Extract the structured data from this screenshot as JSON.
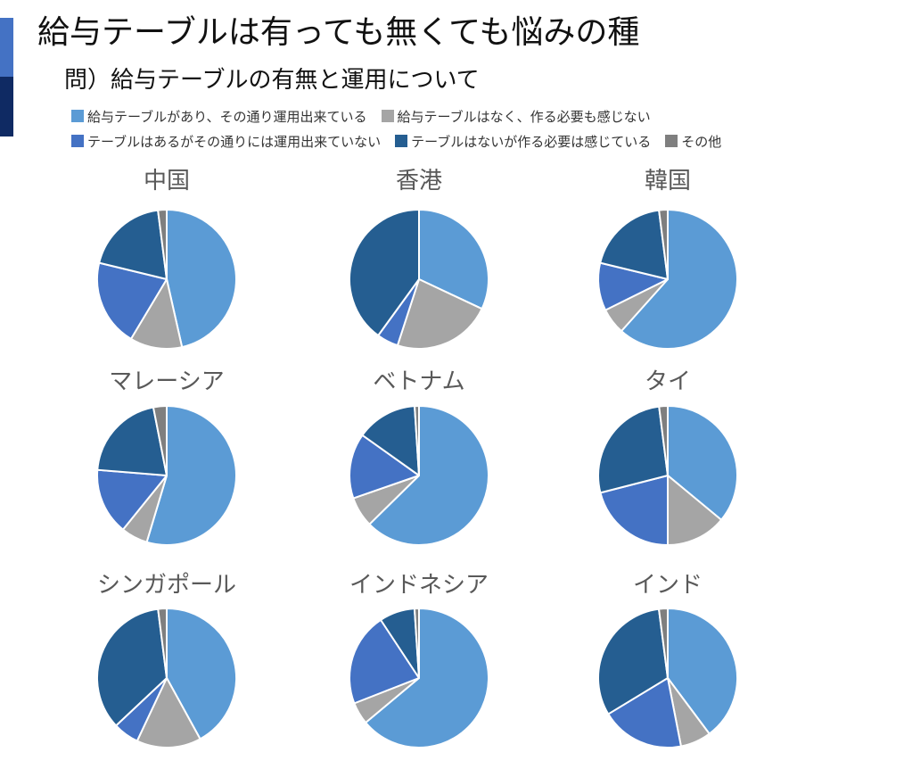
{
  "page": {
    "title": "給与テーブルは有っても無くても悩みの種",
    "subtitle": "問）給与テーブルの有無と運用について"
  },
  "chart_data": {
    "type": "pie",
    "legend_position": "top",
    "series": [
      {
        "name": "給与テーブルがあり、その通り運用出来ている",
        "color": "#5b9bd5"
      },
      {
        "name": "給与テーブルはなく、作る必要も感じない",
        "color": "#a5a5a5"
      },
      {
        "name": "テーブルはあるがその通りには運用出来ていない",
        "color": "#4472c4"
      },
      {
        "name": "テーブルはないが作る必要は感じている",
        "color": "#255e91"
      },
      {
        "name": "その他",
        "color": "#7f7f7f"
      }
    ],
    "legend_rows": [
      [
        0,
        1
      ],
      [
        2,
        3,
        4
      ]
    ],
    "charts": [
      {
        "title": "中国",
        "values": [
          46,
          12,
          20,
          19,
          2
        ]
      },
      {
        "title": "香港",
        "values": [
          32,
          23,
          5,
          40,
          0
        ]
      },
      {
        "title": "韓国",
        "values": [
          61,
          6,
          11,
          19,
          2
        ]
      },
      {
        "title": "マレーシア",
        "values": [
          53,
          6,
          15,
          20,
          3
        ]
      },
      {
        "title": "ベトナム",
        "values": [
          62,
          7,
          15,
          14,
          1
        ]
      },
      {
        "title": "タイ",
        "values": [
          36,
          14,
          21,
          27,
          2
        ]
      },
      {
        "title": "シンガポール",
        "values": [
          42,
          15,
          6,
          35,
          2
        ]
      },
      {
        "title": "インドネシア",
        "values": [
          62,
          5,
          21,
          8,
          1
        ]
      },
      {
        "title": "インド",
        "values": [
          39,
          7,
          19,
          31,
          2
        ]
      }
    ]
  }
}
